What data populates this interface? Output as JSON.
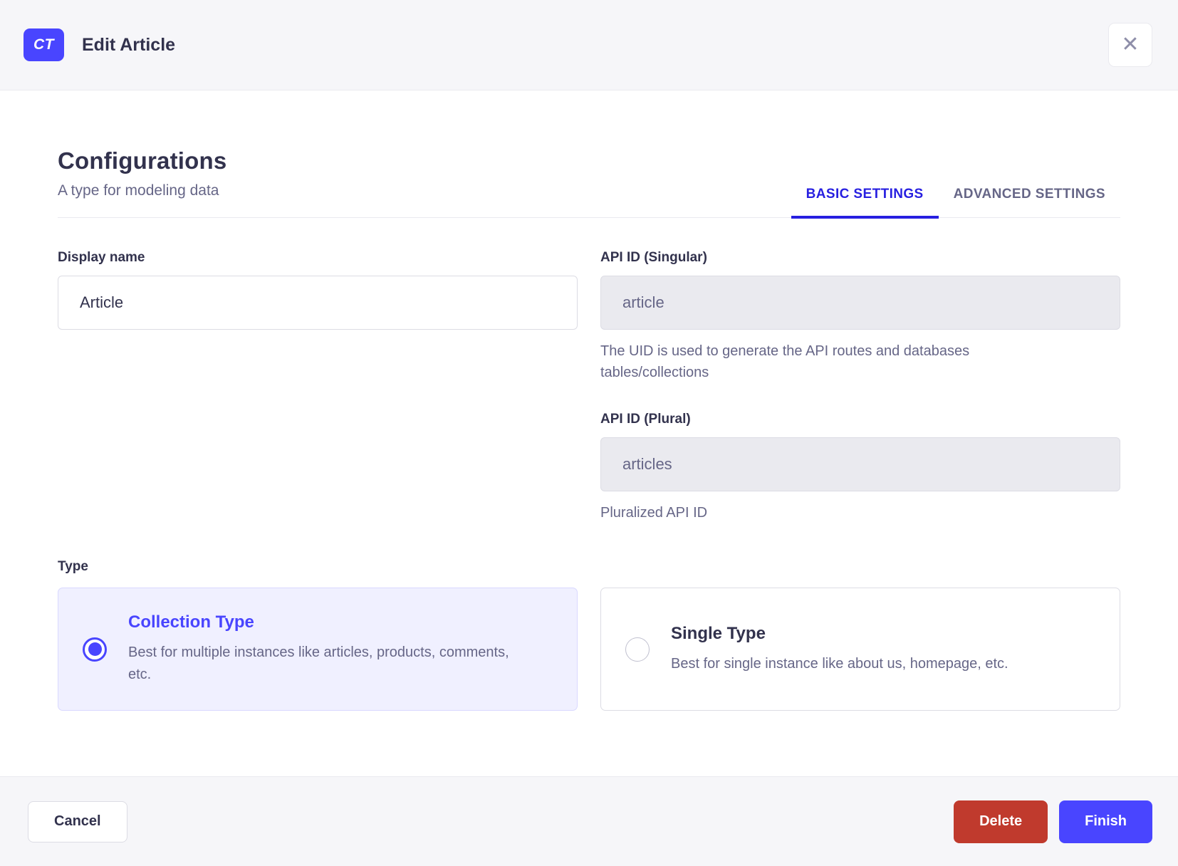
{
  "header": {
    "badge": "CT",
    "title": "Edit Article",
    "close_icon": "✕"
  },
  "section": {
    "title": "Configurations",
    "subtitle": "A type for modeling data"
  },
  "tabs": [
    {
      "label": "BASIC SETTINGS",
      "active": true
    },
    {
      "label": "ADVANCED SETTINGS",
      "active": false
    }
  ],
  "fields": {
    "display_name": {
      "label": "Display name",
      "value": "Article"
    },
    "api_id_singular": {
      "label": "API ID (Singular)",
      "value": "article",
      "helper": "The UID is used to generate the API routes and databases tables/collections"
    },
    "api_id_plural": {
      "label": "API ID (Plural)",
      "value": "articles",
      "helper": "Pluralized API ID"
    }
  },
  "type_section": {
    "label": "Type",
    "options": [
      {
        "title": "Collection Type",
        "description": "Best for multiple instances like articles, products, comments, etc.",
        "selected": true
      },
      {
        "title": "Single Type",
        "description": "Best for single instance like about us, homepage, etc.",
        "selected": false
      }
    ]
  },
  "footer": {
    "cancel": "Cancel",
    "delete": "Delete",
    "finish": "Finish"
  },
  "colors": {
    "primary": "#4945ff",
    "tab_active": "#271fe0",
    "danger": "#c03a2d",
    "surface_muted": "#f6f6f9",
    "border_subtle": "#eaeaef",
    "border_input": "#dcdce4",
    "text_dark": "#32324d",
    "text_muted": "#666687",
    "card_selected_bg": "#f0f0ff",
    "card_selected_border": "#d9d8ff",
    "icon_muted": "#8e8ea9"
  }
}
